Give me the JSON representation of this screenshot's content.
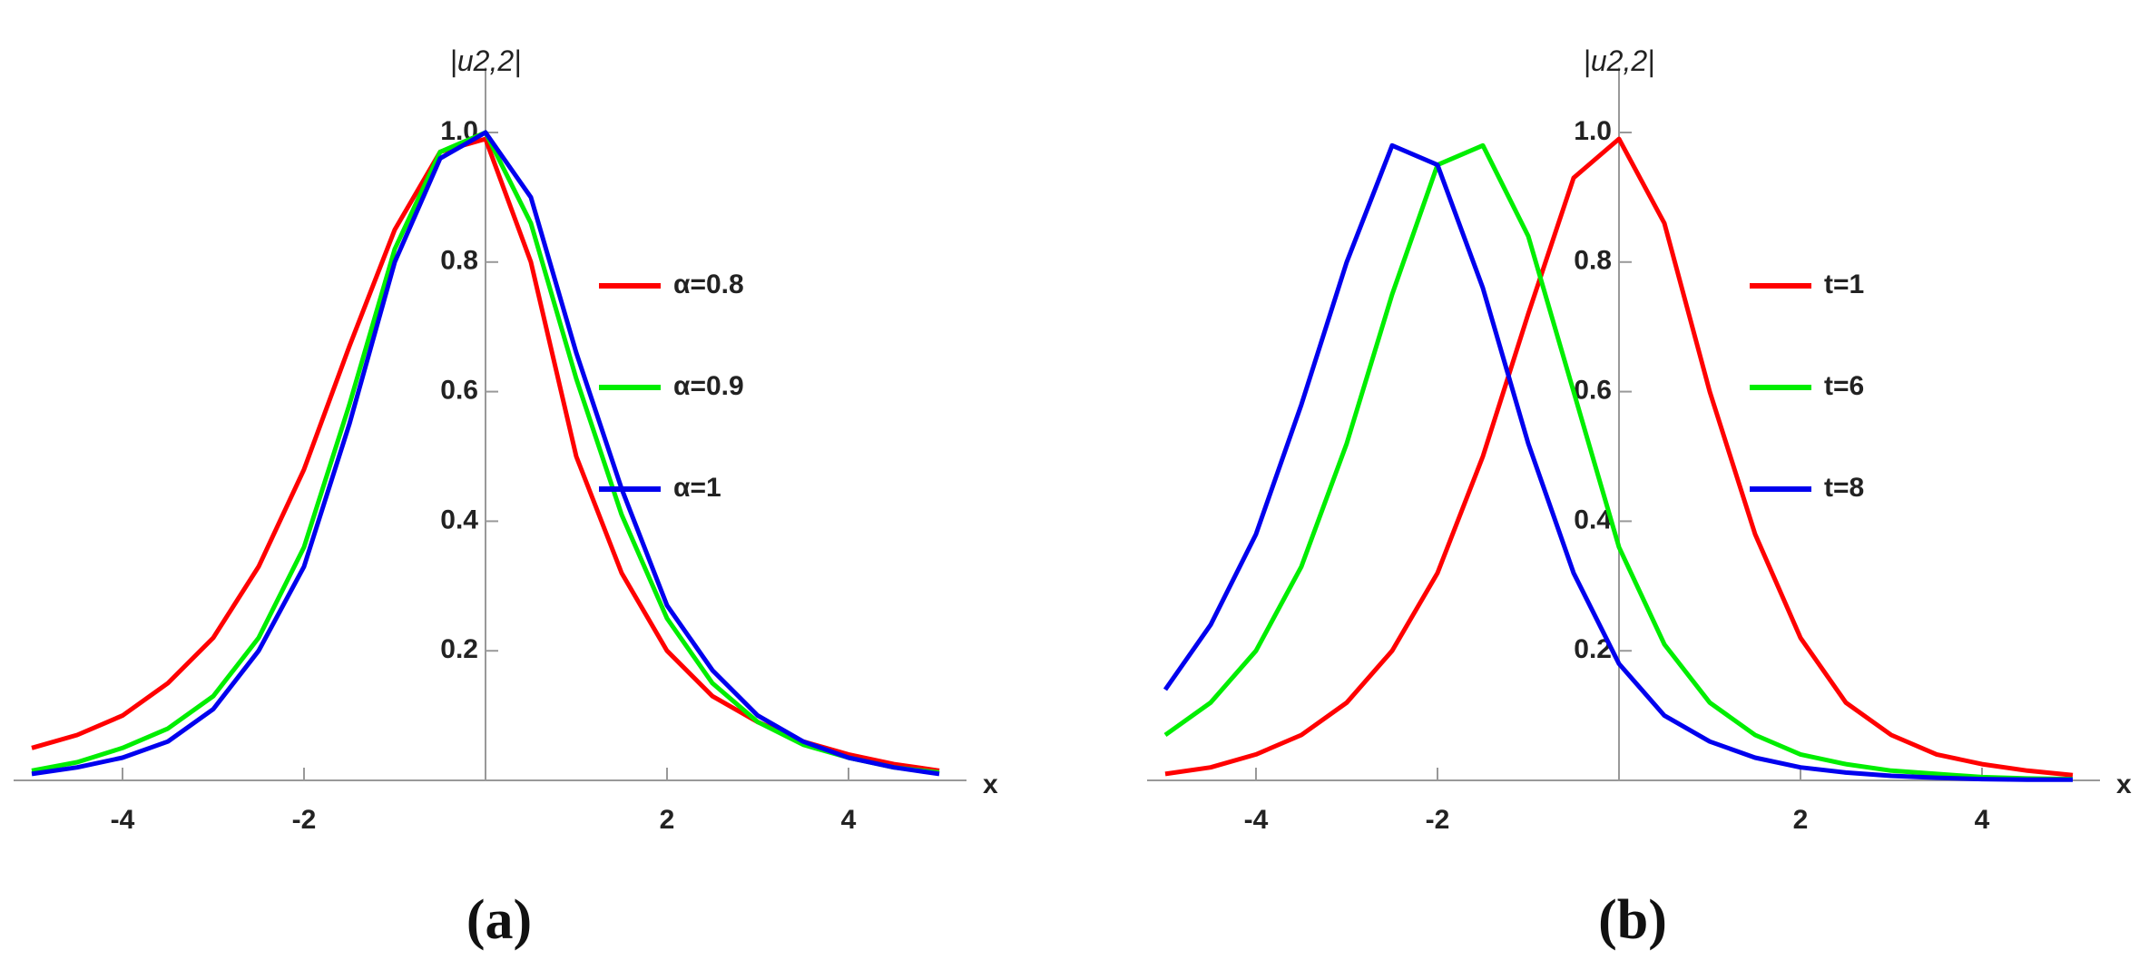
{
  "chart_data": [
    {
      "type": "line",
      "y_label": "|u2,2|",
      "x_label": "x",
      "caption": "(a)",
      "x": [
        -5,
        -4.5,
        -4,
        -3.5,
        -3,
        -2.5,
        -2,
        -1.5,
        -1,
        -0.5,
        0,
        0.5,
        1,
        1.5,
        2,
        2.5,
        3,
        3.5,
        4,
        4.5,
        5
      ],
      "series": [
        {
          "name": "α=0.8",
          "color": "#ff0000",
          "values": [
            0.05,
            0.07,
            0.1,
            0.15,
            0.22,
            0.33,
            0.48,
            0.67,
            0.85,
            0.97,
            0.99,
            0.8,
            0.5,
            0.32,
            0.2,
            0.13,
            0.09,
            0.06,
            0.04,
            0.025,
            0.015
          ]
        },
        {
          "name": "α=0.9",
          "color": "#00ee00",
          "values": [
            0.015,
            0.028,
            0.05,
            0.08,
            0.13,
            0.22,
            0.36,
            0.58,
            0.82,
            0.97,
            1,
            0.86,
            0.62,
            0.41,
            0.25,
            0.15,
            0.09,
            0.055,
            0.035,
            0.02,
            0.012
          ]
        },
        {
          "name": "α=1",
          "color": "#0000ee",
          "values": [
            0.01,
            0.02,
            0.035,
            0.06,
            0.11,
            0.2,
            0.33,
            0.55,
            0.8,
            0.96,
            1,
            0.9,
            0.66,
            0.45,
            0.27,
            0.17,
            0.1,
            0.06,
            0.035,
            0.02,
            0.01
          ]
        }
      ],
      "xlim": [
        -5.2,
        5.3
      ],
      "ylim": [
        0,
        1.1
      ],
      "xticks": [
        -4,
        -2,
        2,
        4
      ],
      "yticks": [
        0.2,
        0.4,
        0.6,
        0.8,
        {
          "value": 1,
          "label": "1.0"
        }
      ]
    },
    {
      "type": "line",
      "y_label": "|u2,2|",
      "x_label": "x",
      "caption": "(b)",
      "x": [
        -5,
        -4.5,
        -4,
        -3.5,
        -3,
        -2.5,
        -2,
        -1.5,
        -1,
        -0.5,
        0,
        0.5,
        1,
        1.5,
        2,
        2.5,
        3,
        3.5,
        4,
        4.5,
        5
      ],
      "series": [
        {
          "name": "t=1",
          "color": "#ff0000",
          "values": [
            0.01,
            0.02,
            0.04,
            0.07,
            0.12,
            0.2,
            0.32,
            0.5,
            0.72,
            0.93,
            0.99,
            0.86,
            0.6,
            0.38,
            0.22,
            0.12,
            0.07,
            0.04,
            0.025,
            0.015,
            0.008
          ]
        },
        {
          "name": "t=6",
          "color": "#00ee00",
          "values": [
            0.07,
            0.12,
            0.2,
            0.33,
            0.52,
            0.75,
            0.95,
            0.98,
            0.84,
            0.6,
            0.36,
            0.21,
            0.12,
            0.07,
            0.04,
            0.025,
            0.015,
            0.01,
            0.005,
            0.003,
            0.002
          ]
        },
        {
          "name": "t=8",
          "color": "#0000ee",
          "values": [
            0.14,
            0.24,
            0.38,
            0.58,
            0.8,
            0.98,
            0.95,
            0.76,
            0.52,
            0.32,
            0.18,
            0.1,
            0.06,
            0.035,
            0.02,
            0.012,
            0.007,
            0.004,
            0.002,
            0.001,
            0.001
          ]
        }
      ],
      "xlim": [
        -5.2,
        5.3
      ],
      "ylim": [
        0,
        1.1
      ],
      "xticks": [
        -4,
        -2,
        2,
        4
      ],
      "yticks": [
        0.2,
        0.4,
        0.6,
        0.8,
        {
          "value": 1,
          "label": "1.0"
        }
      ]
    }
  ]
}
